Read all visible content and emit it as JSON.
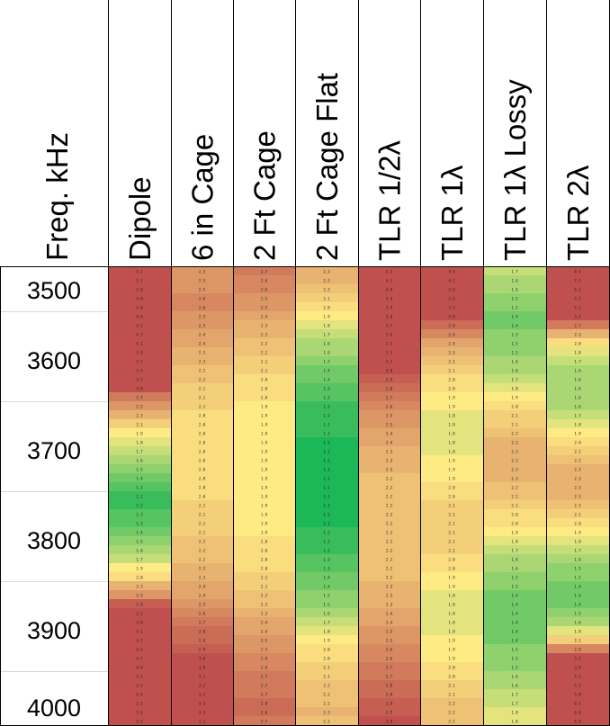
{
  "chart_data": {
    "type": "heatmap",
    "row_header": "Freq. kHz",
    "columns": [
      "Dipole",
      "6 in Cage",
      "2 Ft Cage",
      "2 Ft Cage Flat",
      "TLR 1/2λ",
      "TLR 1λ",
      "TLR 1λ Lossy",
      "TLR 2λ"
    ],
    "row_tick_labels": [
      "3500",
      "3600",
      "3700",
      "3800",
      "3900",
      "4000"
    ],
    "freq_start": 3500,
    "freq_step": 10,
    "color_scale": {
      "stops": [
        {
          "value": 1.0,
          "color": "#00b050"
        },
        {
          "value": 1.9,
          "color": "#ffeb84"
        },
        {
          "value": 3.0,
          "color": "#c0504d"
        }
      ]
    },
    "values": [
      [
        5.2,
        2.5,
        2.7,
        2.3,
        4.3,
        4.5,
        1.7,
        8.4
      ],
      [
        5.1,
        2.5,
        2.6,
        2.3,
        4.1,
        4.2,
        1.6,
        7.2
      ],
      [
        5.0,
        2.5,
        2.6,
        2.2,
        4.0,
        3.9,
        1.6,
        6.2
      ],
      [
        4.9,
        2.6,
        2.5,
        2.1,
        3.9,
        3.6,
        1.5,
        5.2
      ],
      [
        4.8,
        2.6,
        2.5,
        2.0,
        3.9,
        3.3,
        1.5,
        4.2
      ],
      [
        4.6,
        2.5,
        2.4,
        1.9,
        3.8,
        3.0,
        1.4,
        3.4
      ],
      [
        4.5,
        2.5,
        2.3,
        1.8,
        3.7,
        2.8,
        1.4,
        2.7
      ],
      [
        4.3,
        2.4,
        2.3,
        1.7,
        3.6,
        2.6,
        1.5,
        2.3
      ],
      [
        4.1,
        2.4,
        2.2,
        1.6,
        3.5,
        2.4,
        1.5,
        2.0
      ],
      [
        3.9,
        2.3,
        2.2,
        1.6,
        3.3,
        2.3,
        1.5,
        1.8
      ],
      [
        3.7,
        2.3,
        2.1,
        1.5,
        3.2,
        2.2,
        1.6,
        1.7
      ],
      [
        3.4,
        2.2,
        2.1,
        1.4,
        3.0,
        2.1,
        1.6,
        1.6
      ],
      [
        3.2,
        2.2,
        2.0,
        1.4,
        2.9,
        2.0,
        1.7,
        1.6
      ],
      [
        3.0,
        2.1,
        2.0,
        1.3,
        2.8,
        2.0,
        1.8,
        1.6
      ],
      [
        2.7,
        2.1,
        2.0,
        1.3,
        2.7,
        1.9,
        1.9,
        1.6
      ],
      [
        2.5,
        2.1,
        1.9,
        1.2,
        2.6,
        1.9,
        2.0,
        1.6
      ],
      [
        2.3,
        2.0,
        1.9,
        1.2,
        2.5,
        1.8,
        2.1,
        1.7
      ],
      [
        2.1,
        2.0,
        1.9,
        1.2,
        2.5,
        1.8,
        2.1,
        1.8
      ],
      [
        1.9,
        2.0,
        1.9,
        1.2,
        2.4,
        1.8,
        2.2,
        1.9
      ],
      [
        1.8,
        2.0,
        1.9,
        1.1,
        2.4,
        1.8,
        2.3,
        2.0
      ],
      [
        1.7,
        2.0,
        1.9,
        1.1,
        2.3,
        1.8,
        2.3,
        2.1
      ],
      [
        1.6,
        2.0,
        1.9,
        1.1,
        2.3,
        1.9,
        2.3,
        2.2
      ],
      [
        1.5,
        2.0,
        1.9,
        1.1,
        2.3,
        1.9,
        2.3,
        2.3
      ],
      [
        1.4,
        2.0,
        1.9,
        1.1,
        2.2,
        1.9,
        2.3,
        2.3
      ],
      [
        1.3,
        2.0,
        1.9,
        1.1,
        2.2,
        2.0,
        2.2,
        2.3
      ],
      [
        1.2,
        2.0,
        1.9,
        1.1,
        2.2,
        2.0,
        2.2,
        2.3
      ],
      [
        1.2,
        2.1,
        1.9,
        1.1,
        2.2,
        2.1,
        2.1,
        2.2
      ],
      [
        1.3,
        2.1,
        1.9,
        1.1,
        2.2,
        2.1,
        2.0,
        2.1
      ],
      [
        1.3,
        2.1,
        1.9,
        1.1,
        2.2,
        2.1,
        2.0,
        2.0
      ],
      [
        1.4,
        2.1,
        1.9,
        1.2,
        2.2,
        2.1,
        1.9,
        1.9
      ],
      [
        1.5,
        2.2,
        2.0,
        1.2,
        2.2,
        2.1,
        1.8,
        1.8
      ],
      [
        1.6,
        2.2,
        2.0,
        1.2,
        2.2,
        2.1,
        1.7,
        1.7
      ],
      [
        1.7,
        2.2,
        2.0,
        1.3,
        2.2,
        2.0,
        1.6,
        1.6
      ],
      [
        1.9,
        2.3,
        2.0,
        1.3,
        2.2,
        2.0,
        1.6,
        1.5
      ],
      [
        2.0,
        2.3,
        2.1,
        1.4,
        2.2,
        1.9,
        1.5,
        1.5
      ],
      [
        2.3,
        2.4,
        2.1,
        1.4,
        2.3,
        1.9,
        1.5,
        1.4
      ],
      [
        2.5,
        2.4,
        2.2,
        1.5,
        2.3,
        1.8,
        1.4,
        1.4
      ],
      [
        2.9,
        2.5,
        2.2,
        1.5,
        2.3,
        1.8,
        1.4,
        1.4
      ],
      [
        3.3,
        2.6,
        2.3,
        1.6,
        2.4,
        1.8,
        1.4,
        1.5
      ],
      [
        3.8,
        2.7,
        2.4,
        1.7,
        2.4,
        1.8,
        1.4,
        1.6
      ],
      [
        4.1,
        2.8,
        2.4,
        1.8,
        2.5,
        1.8,
        1.4,
        1.8
      ],
      [
        4.3,
        2.8,
        2.5,
        1.9,
        2.5,
        1.9,
        1.4,
        2.1
      ],
      [
        4.5,
        2.9,
        2.5,
        2.0,
        2.6,
        1.9,
        1.5,
        2.6
      ],
      [
        4.7,
        3.0,
        2.6,
        2.0,
        2.6,
        1.9,
        1.5,
        3.2
      ],
      [
        4.9,
        3.0,
        2.6,
        2.1,
        2.7,
        2.0,
        1.5,
        3.9
      ],
      [
        5.1,
        3.1,
        2.7,
        2.1,
        2.7,
        2.0,
        1.6,
        4.5
      ],
      [
        5.2,
        3.2,
        2.7,
        2.2,
        2.8,
        2.1,
        1.6,
        5.2
      ],
      [
        5.4,
        3.2,
        2.7,
        2.2,
        2.8,
        2.1,
        1.7,
        5.8
      ],
      [
        5.5,
        3.3,
        2.8,
        2.2,
        2.9,
        2.2,
        1.7,
        6.3
      ],
      [
        5.6,
        3.3,
        2.8,
        2.3,
        2.9,
        2.2,
        1.8,
        6.8
      ],
      [
        5.6,
        3.3,
        2.7,
        2.2,
        3.0,
        2.2,
        1.8,
        6.9
      ]
    ]
  }
}
